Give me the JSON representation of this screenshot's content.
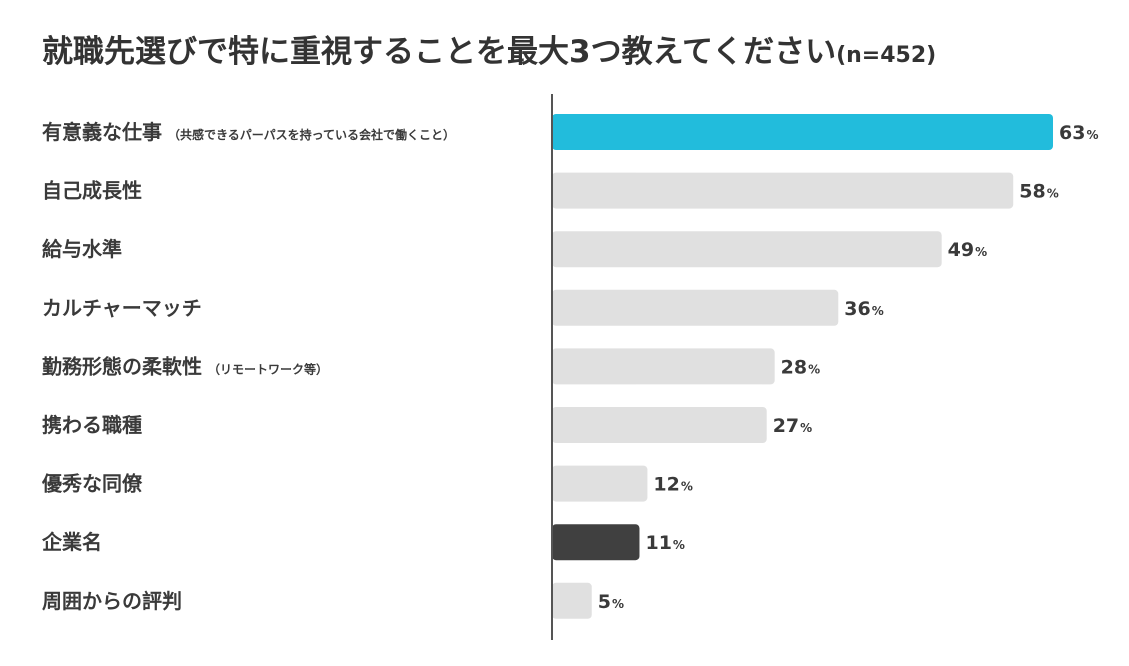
{
  "title": "就職先選びで特に重視することを最大3つ教えてください",
  "sample_size": "(n=452)",
  "chart_data": {
    "type": "bar",
    "orientation": "horizontal",
    "title": "就職先選びで特に重視することを最大3つ教えてください(n=452)",
    "xlabel": "",
    "ylabel": "",
    "unit": "%",
    "categories": [
      {
        "label": "有意義な仕事",
        "note": "（共感できるパーパスを持っている会社で働くこと）"
      },
      {
        "label": "自己成長性",
        "note": ""
      },
      {
        "label": "給与水準",
        "note": ""
      },
      {
        "label": "カルチャーマッチ",
        "note": ""
      },
      {
        "label": "勤務形態の柔軟性",
        "note": "（リモートワーク等）"
      },
      {
        "label": "携わる職種",
        "note": ""
      },
      {
        "label": "優秀な同僚",
        "note": ""
      },
      {
        "label": "企業名",
        "note": ""
      },
      {
        "label": "周囲からの評判",
        "note": ""
      }
    ],
    "values": [
      63,
      58,
      49,
      36,
      28,
      27,
      12,
      11,
      5
    ],
    "bar_colors": [
      "#22bcdc",
      "#e0e0e0",
      "#e0e0e0",
      "#e0e0e0",
      "#e0e0e0",
      "#e0e0e0",
      "#e0e0e0",
      "#404040",
      "#e0e0e0"
    ],
    "axis_color": "#555555",
    "grid": false
  }
}
